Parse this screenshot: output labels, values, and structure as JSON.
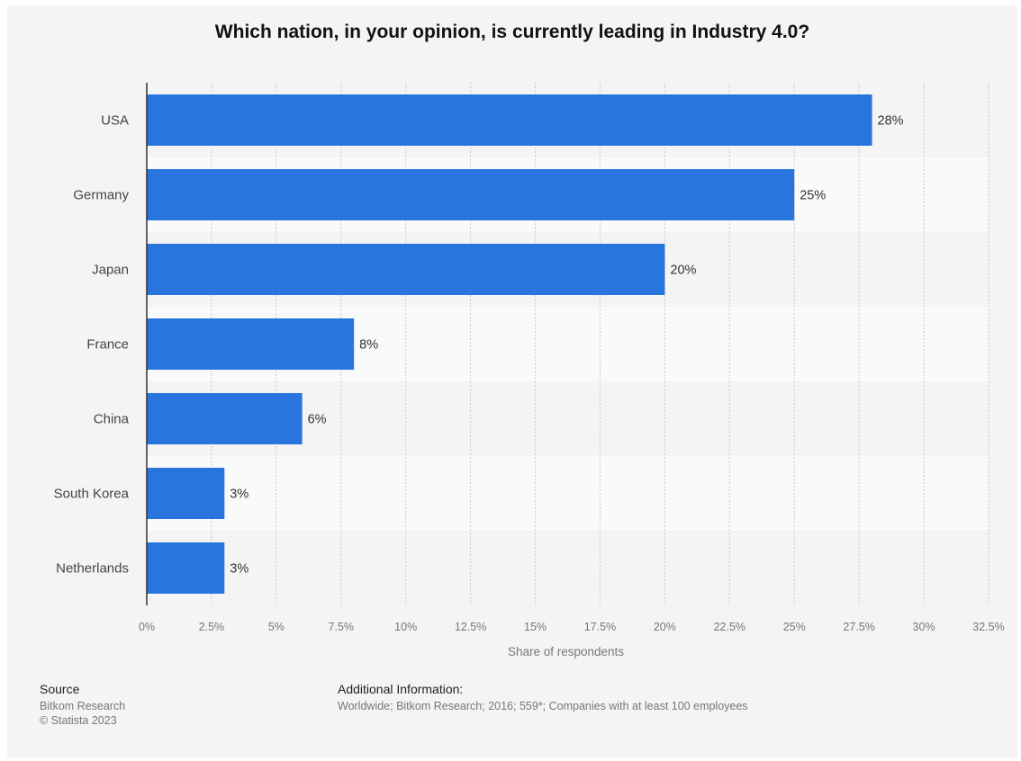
{
  "chart_data": {
    "type": "bar",
    "orientation": "horizontal",
    "title": "Which nation, in your opinion, is currently leading in Industry 4.0?",
    "xlabel": "Share of respondents",
    "ylabel": "",
    "categories": [
      "USA",
      "Germany",
      "Japan",
      "France",
      "China",
      "South Korea",
      "Netherlands"
    ],
    "values": [
      28,
      25,
      20,
      8,
      6,
      3,
      3
    ],
    "value_labels": [
      "28%",
      "25%",
      "20%",
      "8%",
      "6%",
      "3%",
      "3%"
    ],
    "xlim": [
      0,
      32.5
    ],
    "ticks": [
      0,
      2.5,
      5,
      7.5,
      10,
      12.5,
      15,
      17.5,
      20,
      22.5,
      25,
      27.5,
      30,
      32.5
    ],
    "tick_labels": [
      "0%",
      "2.5%",
      "5%",
      "7.5%",
      "10%",
      "12.5%",
      "15%",
      "17.5%",
      "20%",
      "22.5%",
      "25%",
      "27.5%",
      "30%",
      "32.5%"
    ],
    "grid": true,
    "bar_color": "#2876dd",
    "legend": "none"
  },
  "footer": {
    "source_heading": "Source",
    "source_lines": [
      "Bitkom Research",
      "© Statista 2023"
    ],
    "info_heading": "Additional Information:",
    "info_text": "Worldwide; Bitkom Research; 2016; 559*; Companies with at least 100 employees"
  }
}
